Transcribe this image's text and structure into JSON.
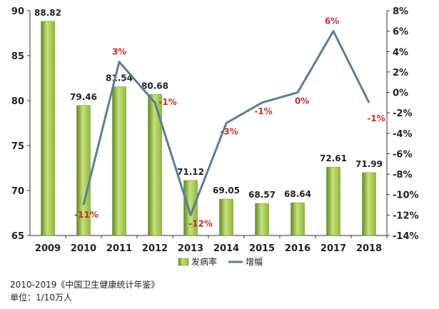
{
  "chart_data": {
    "type": "bar",
    "categories": [
      "2009",
      "2010",
      "2011",
      "2012",
      "2013",
      "2014",
      "2015",
      "2016",
      "2017",
      "2018"
    ],
    "series": [
      {
        "name": "发病率",
        "kind": "bar",
        "axis": "left",
        "values": [
          88.82,
          79.46,
          81.54,
          80.68,
          71.12,
          69.05,
          68.57,
          68.64,
          72.61,
          71.99
        ],
        "labels": [
          "88.82",
          "79.46",
          "81.54",
          "80.68",
          "71.12",
          "69.05",
          "68.57",
          "68.64",
          "72.61",
          "71.99"
        ]
      },
      {
        "name": "增幅",
        "kind": "line",
        "axis": "right",
        "values": [
          null,
          -11,
          3,
          -1,
          -12,
          -3,
          -1,
          0,
          6,
          -1
        ],
        "labels": [
          "",
          "-11%",
          "3%",
          "-1%",
          "-12%",
          "-3%",
          "-1%",
          "0%",
          "6%",
          "-1%"
        ]
      }
    ],
    "y_left": {
      "min": 65,
      "max": 90,
      "step": 5,
      "ticks": [
        "65",
        "70",
        "75",
        "80",
        "85",
        "90"
      ]
    },
    "y_right": {
      "min": -14,
      "max": 8,
      "step": 2,
      "ticks": [
        "-14%",
        "-12%",
        "-10%",
        "-8%",
        "-6%",
        "-4%",
        "-2%",
        "0%",
        "2%",
        "4%",
        "6%",
        "8%"
      ]
    },
    "legend": {
      "placement": "bottom",
      "items": [
        "发病率",
        "增幅"
      ]
    },
    "grid": false,
    "colors": {
      "bar": "#8fb83e",
      "bar_dark": "#5f8a1e",
      "bar_light": "#c8e07a",
      "line": "#5a7f96",
      "line_label": "#c0302b",
      "bar_label": "#222222"
    }
  },
  "footer": {
    "source": "2010-2019《中国卫生健康统计年鉴》",
    "unit": "单位：1/10万人"
  }
}
